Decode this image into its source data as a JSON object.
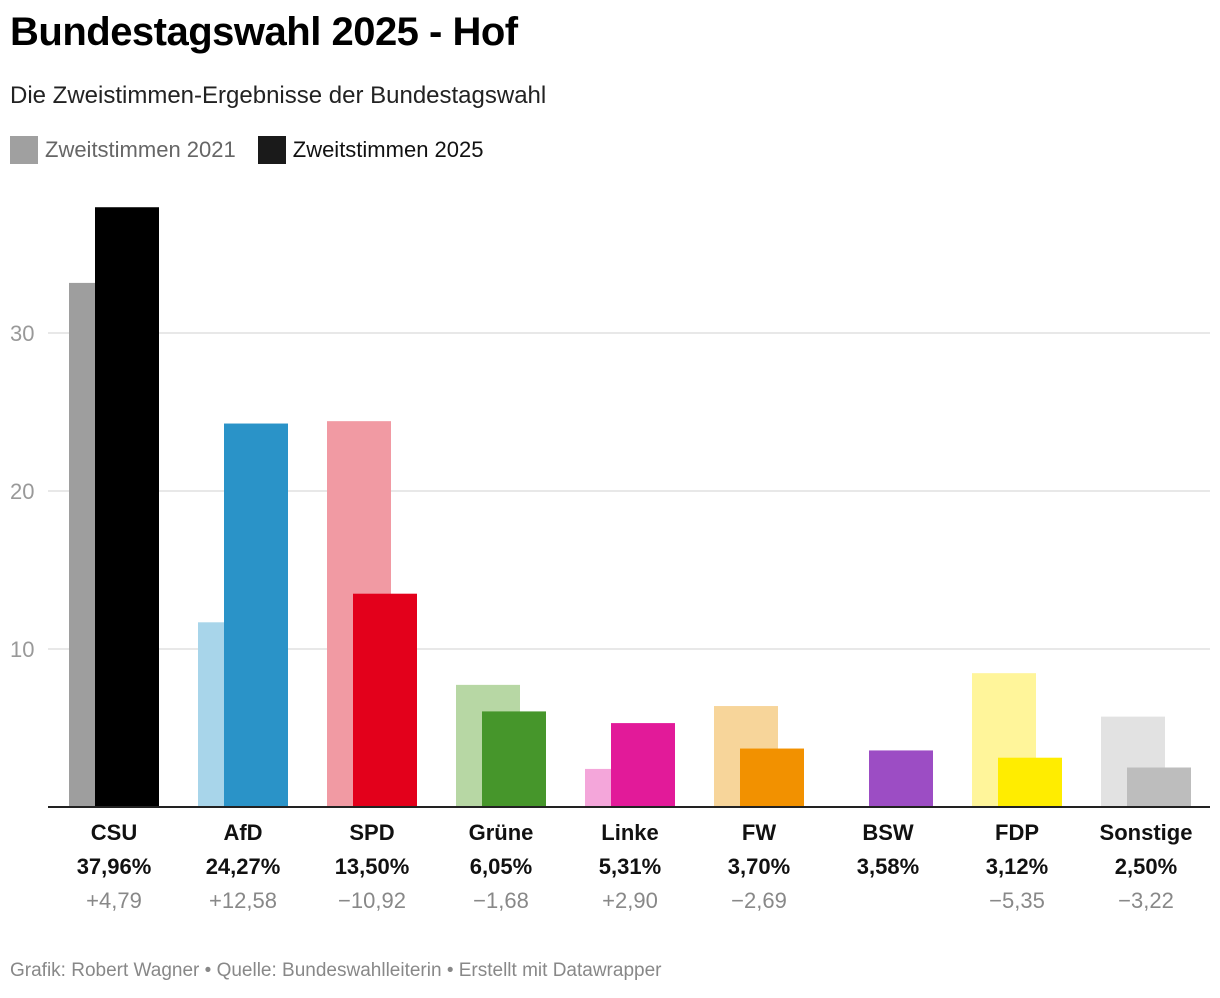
{
  "title": "Bundestagswahl 2025 - Hof",
  "subtitle": "Die Zweistimmen-Ergebnisse der Bundestagswahl",
  "legend": [
    {
      "label": "Zweitstimmen 2021",
      "color": "#a0a0a0",
      "text_color": "#666666"
    },
    {
      "label": "Zweitstimmen 2025",
      "color": "#1a1a1a",
      "text_color": "#111111"
    }
  ],
  "footer": "Grafik: Robert Wagner • Quelle: Bundeswahlleiterin • Erstellt mit Datawrapper",
  "chart_data": {
    "type": "bar",
    "title": "Bundestagswahl 2025 - Hof",
    "xlabel": "",
    "ylabel": "",
    "ylim": [
      0,
      38
    ],
    "yticks": [
      10,
      20,
      30
    ],
    "categories": [
      "CSU",
      "AfD",
      "SPD",
      "Grüne",
      "Linke",
      "FW",
      "BSW",
      "FDP",
      "Sonstige"
    ],
    "series": [
      {
        "name": "Zweitstimmen 2021",
        "values": [
          33.17,
          11.69,
          24.42,
          7.73,
          2.41,
          6.39,
          null,
          8.47,
          5.72
        ]
      },
      {
        "name": "Zweitstimmen 2025",
        "values": [
          37.96,
          24.27,
          13.5,
          6.05,
          5.31,
          3.7,
          3.58,
          3.12,
          2.5
        ]
      }
    ],
    "labels_2025": [
      "37,96%",
      "24,27%",
      "13,50%",
      "6,05%",
      "5,31%",
      "3,70%",
      "3,58%",
      "3,12%",
      "2,50%"
    ],
    "changes": [
      "+4,79",
      "+12,58",
      "−10,92",
      "−1,68",
      "+2,90",
      "−2,69",
      "",
      "−5,35",
      "−3,22"
    ],
    "colors_2021": [
      "#9e9e9e",
      "#a8d5ea",
      "#f19aa3",
      "#b7d7a4",
      "#f4a6da",
      "#f7d59a",
      "#ffffff",
      "#fff59a",
      "#e2e2e2"
    ],
    "colors_2025": [
      "#000000",
      "#2a93c8",
      "#e3001b",
      "#46962b",
      "#e21a99",
      "#f29100",
      "#9c4dc4",
      "#ffed00",
      "#bdbdbd"
    ]
  }
}
